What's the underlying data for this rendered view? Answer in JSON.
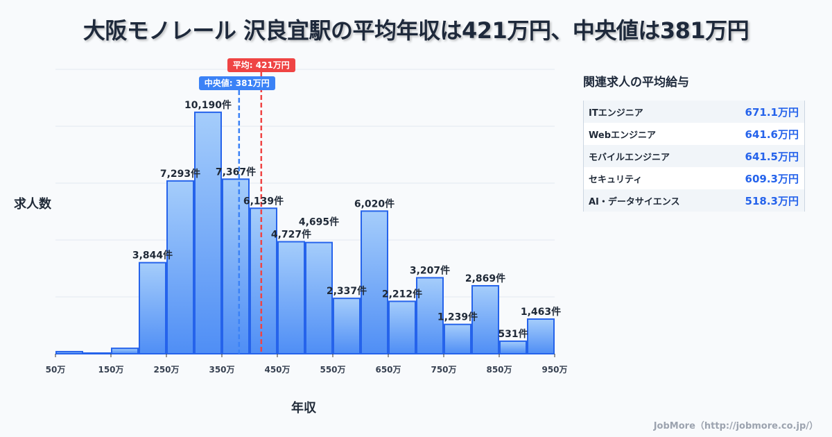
{
  "title": "大阪モノレール 沢良宜駅の平均年収は421万円、中央値は381万円",
  "chart_data": {
    "type": "bar",
    "title": "大阪モノレール 沢良宜駅の平均年収は421万円、中央値は381万円",
    "xlabel": "年収",
    "ylabel": "求人数",
    "bin_starts": [
      50,
      100,
      150,
      200,
      250,
      300,
      350,
      400,
      450,
      500,
      550,
      600,
      650,
      700,
      750,
      800,
      850,
      900
    ],
    "bin_width": 50,
    "values": [
      90,
      30,
      230,
      3844,
      7293,
      10190,
      7367,
      6139,
      4727,
      4695,
      2337,
      6020,
      2212,
      3207,
      1239,
      2869,
      531,
      1463
    ],
    "labels": [
      "",
      "",
      "",
      "3,844件",
      "7,293件",
      "10,190件",
      "7,367件",
      "6,139件",
      "4,727件",
      "4,695件",
      "2,337件",
      "6,020件",
      "2,212件",
      "3,207件",
      "1,239件",
      "2,869件",
      "531件",
      "1,463件"
    ],
    "xticks": [
      "50万",
      "150万",
      "250万",
      "350万",
      "450万",
      "550万",
      "650万",
      "750万",
      "850万",
      "950万"
    ],
    "xtick_values": [
      50,
      150,
      250,
      350,
      450,
      550,
      650,
      750,
      850,
      950
    ],
    "xlim": [
      50,
      950
    ],
    "ylim": [
      0,
      12000
    ],
    "grid": true,
    "mean": 421,
    "median": 381,
    "mean_label": "平均: 421万円",
    "median_label": "中央値: 381万円",
    "colors": {
      "bar_top": "#a5cdfb",
      "bar_bottom": "#4f8ef5",
      "bar_stroke": "#2563eb",
      "mean": "#ef4444",
      "median": "#3b82f6"
    }
  },
  "panel": {
    "title": "関連求人の平均給与",
    "rows": [
      {
        "name": "ITエンジニア",
        "value": "671.1万円"
      },
      {
        "name": "Webエンジニア",
        "value": "641.6万円"
      },
      {
        "name": "モバイルエンジニア",
        "value": "641.5万円"
      },
      {
        "name": "セキュリティ",
        "value": "609.3万円"
      },
      {
        "name": "AI・データサイエンス",
        "value": "518.3万円"
      }
    ]
  },
  "footer": "JobMore（http://jobmore.co.jp/）"
}
